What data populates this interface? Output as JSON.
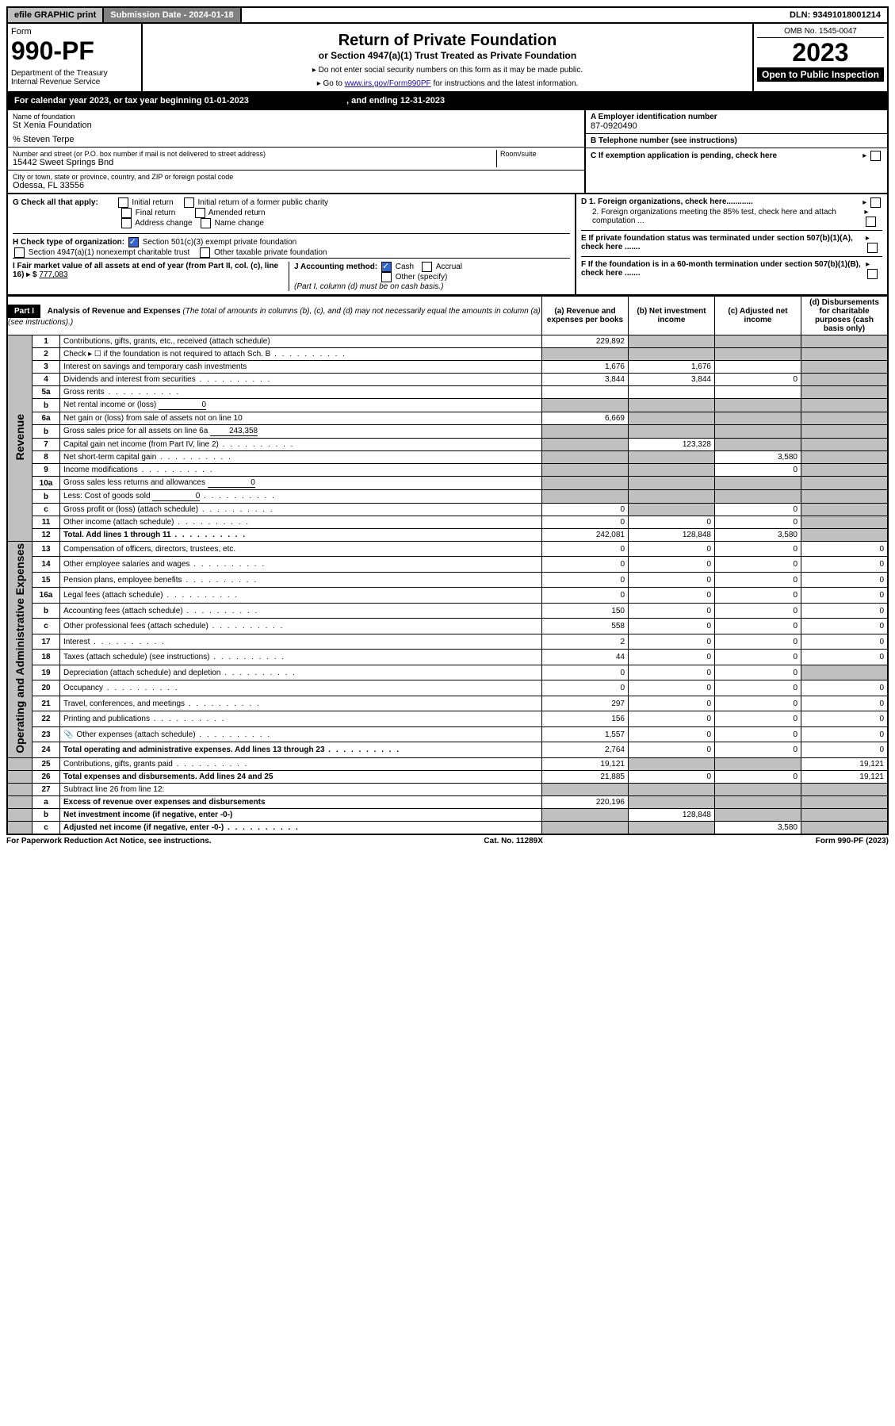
{
  "top": {
    "efile": "efile GRAPHIC print",
    "subdate": "Submission Date - 2024-01-18",
    "dln": "DLN: 93491018001214"
  },
  "header": {
    "form_word": "Form",
    "form_num": "990-PF",
    "dept": "Department of the Treasury\nInternal Revenue Service",
    "title": "Return of Private Foundation",
    "subtitle": "or Section 4947(a)(1) Trust Treated as Private Foundation",
    "instr1": "▸ Do not enter social security numbers on this form as it may be made public.",
    "instr2_pre": "▸ Go to ",
    "instr2_link": "www.irs.gov/Form990PF",
    "instr2_post": " for instructions and the latest information.",
    "omb": "OMB No. 1545-0047",
    "year": "2023",
    "open": "Open to Public Inspection"
  },
  "cal_year": {
    "text_pre": "For calendar year 2023, or tax year beginning ",
    "begin": "01-01-2023",
    "mid": " , and ending ",
    "end": "12-31-2023"
  },
  "entity": {
    "name_label": "Name of foundation",
    "name": "St Xenia Foundation",
    "care_of": "% Steven Terpe",
    "addr_label": "Number and street (or P.O. box number if mail is not delivered to street address)",
    "addr": "15442 Sweet Springs Bnd",
    "room_label": "Room/suite",
    "room": "",
    "city_label": "City or town, state or province, country, and ZIP or foreign postal code",
    "city": "Odessa, FL  33556",
    "ein_label": "A Employer identification number",
    "ein": "87-0920490",
    "tel_label": "B Telephone number (see instructions)",
    "tel": "",
    "c_label": "C If exemption application is pending, check here"
  },
  "ghi": {
    "g_label": "G Check all that apply:",
    "g_opts": [
      "Initial return",
      "Initial return of a former public charity",
      "Final return",
      "Amended return",
      "Address change",
      "Name change"
    ],
    "h_label": "H Check type of organization:",
    "h_opt1": "Section 501(c)(3) exempt private foundation",
    "h_opt2": "Section 4947(a)(1) nonexempt charitable trust",
    "h_opt3": "Other taxable private foundation",
    "i_label_pre": "I Fair market value of all assets at end of year (from Part II, col. (c), line 16) ▸ $ ",
    "i_val": "777,083",
    "j_label": "J Accounting method:",
    "j_cash": "Cash",
    "j_accrual": "Accrual",
    "j_other": "Other (specify)",
    "j_note": "(Part I, column (d) must be on cash basis.)",
    "d1": "D 1. Foreign organizations, check here............",
    "d2": "2. Foreign organizations meeting the 85% test, check here and attach computation ...",
    "e_label": "E  If private foundation status was terminated under section 507(b)(1)(A), check here .......",
    "f_label": "F  If the foundation is in a 60-month termination under section 507(b)(1)(B), check here ......."
  },
  "part1": {
    "badge": "Part I",
    "title": "Analysis of Revenue and Expenses",
    "title_note": "(The total of amounts in columns (b), (c), and (d) may not necessarily equal the amounts in column (a) (see instructions).)",
    "cols": {
      "a": "(a)   Revenue and expenses per books",
      "b": "(b)   Net investment income",
      "c": "(c)   Adjusted net income",
      "d": "(d)   Disbursements for charitable purposes (cash basis only)"
    }
  },
  "rot_labels": {
    "revenue": "Revenue",
    "expenses": "Operating and Administrative Expenses"
  },
  "rows": [
    {
      "n": "1",
      "desc": "Contributions, gifts, grants, etc., received (attach schedule)",
      "a": "229,892",
      "b": "shade",
      "c": "shade",
      "d": "shade"
    },
    {
      "n": "2",
      "desc": "Check ▸ ☐ if the foundation is not required to attach Sch. B",
      "a": "shade",
      "b": "shade",
      "c": "shade",
      "d": "shade",
      "dots": true
    },
    {
      "n": "3",
      "desc": "Interest on savings and temporary cash investments",
      "a": "1,676",
      "b": "1,676",
      "c": "",
      "d": "shade"
    },
    {
      "n": "4",
      "desc": "Dividends and interest from securities",
      "a": "3,844",
      "b": "3,844",
      "c": "0",
      "d": "shade",
      "dots": true
    },
    {
      "n": "5a",
      "desc": "Gross rents",
      "a": "",
      "b": "",
      "c": "",
      "d": "shade",
      "dots": true
    },
    {
      "n": "b",
      "desc": "Net rental income or (loss)",
      "inline": "0",
      "a": "shade",
      "b": "shade",
      "c": "shade",
      "d": "shade"
    },
    {
      "n": "6a",
      "desc": "Net gain or (loss) from sale of assets not on line 10",
      "a": "6,669",
      "b": "shade",
      "c": "shade",
      "d": "shade"
    },
    {
      "n": "b",
      "desc": "Gross sales price for all assets on line 6a",
      "inline": "243,358",
      "a": "shade",
      "b": "shade",
      "c": "shade",
      "d": "shade"
    },
    {
      "n": "7",
      "desc": "Capital gain net income (from Part IV, line 2)",
      "a": "shade",
      "b": "123,328",
      "c": "shade",
      "d": "shade",
      "dots": true
    },
    {
      "n": "8",
      "desc": "Net short-term capital gain",
      "a": "shade",
      "b": "shade",
      "c": "3,580",
      "d": "shade",
      "dots": true
    },
    {
      "n": "9",
      "desc": "Income modifications",
      "a": "shade",
      "b": "shade",
      "c": "0",
      "d": "shade",
      "dots": true
    },
    {
      "n": "10a",
      "desc": "Gross sales less returns and allowances",
      "inline": "0",
      "a": "shade",
      "b": "shade",
      "c": "shade",
      "d": "shade"
    },
    {
      "n": "b",
      "desc": "Less: Cost of goods sold",
      "inline": "0",
      "a": "shade",
      "b": "shade",
      "c": "shade",
      "d": "shade",
      "dots": true
    },
    {
      "n": "c",
      "desc": "Gross profit or (loss) (attach schedule)",
      "a": "0",
      "b": "shade",
      "c": "0",
      "d": "shade",
      "dots": true
    },
    {
      "n": "11",
      "desc": "Other income (attach schedule)",
      "a": "0",
      "b": "0",
      "c": "0",
      "d": "shade",
      "dots": true
    },
    {
      "n": "12",
      "desc": "Total. Add lines 1 through 11",
      "a": "242,081",
      "b": "128,848",
      "c": "3,580",
      "d": "shade",
      "bold": true,
      "dots": true
    },
    {
      "n": "13",
      "desc": "Compensation of officers, directors, trustees, etc.",
      "a": "0",
      "b": "0",
      "c": "0",
      "d": "0"
    },
    {
      "n": "14",
      "desc": "Other employee salaries and wages",
      "a": "0",
      "b": "0",
      "c": "0",
      "d": "0",
      "dots": true
    },
    {
      "n": "15",
      "desc": "Pension plans, employee benefits",
      "a": "0",
      "b": "0",
      "c": "0",
      "d": "0",
      "dots": true
    },
    {
      "n": "16a",
      "desc": "Legal fees (attach schedule)",
      "a": "0",
      "b": "0",
      "c": "0",
      "d": "0",
      "dots": true
    },
    {
      "n": "b",
      "desc": "Accounting fees (attach schedule)",
      "a": "150",
      "b": "0",
      "c": "0",
      "d": "0",
      "dots": true
    },
    {
      "n": "c",
      "desc": "Other professional fees (attach schedule)",
      "a": "558",
      "b": "0",
      "c": "0",
      "d": "0",
      "dots": true
    },
    {
      "n": "17",
      "desc": "Interest",
      "a": "2",
      "b": "0",
      "c": "0",
      "d": "0",
      "dots": true
    },
    {
      "n": "18",
      "desc": "Taxes (attach schedule) (see instructions)",
      "a": "44",
      "b": "0",
      "c": "0",
      "d": "0",
      "dots": true
    },
    {
      "n": "19",
      "desc": "Depreciation (attach schedule) and depletion",
      "a": "0",
      "b": "0",
      "c": "0",
      "d": "shade",
      "dots": true
    },
    {
      "n": "20",
      "desc": "Occupancy",
      "a": "0",
      "b": "0",
      "c": "0",
      "d": "0",
      "dots": true
    },
    {
      "n": "21",
      "desc": "Travel, conferences, and meetings",
      "a": "297",
      "b": "0",
      "c": "0",
      "d": "0",
      "dots": true
    },
    {
      "n": "22",
      "desc": "Printing and publications",
      "a": "156",
      "b": "0",
      "c": "0",
      "d": "0",
      "dots": true
    },
    {
      "n": "23",
      "desc": "Other expenses (attach schedule)",
      "a": "1,557",
      "b": "0",
      "c": "0",
      "d": "0",
      "icon": true,
      "dots": true
    },
    {
      "n": "24",
      "desc": "Total operating and administrative expenses. Add lines 13 through 23",
      "a": "2,764",
      "b": "0",
      "c": "0",
      "d": "0",
      "bold": true,
      "dots": true
    },
    {
      "n": "25",
      "desc": "Contributions, gifts, grants paid",
      "a": "19,121",
      "b": "shade",
      "c": "shade",
      "d": "19,121",
      "dots": true
    },
    {
      "n": "26",
      "desc": "Total expenses and disbursements. Add lines 24 and 25",
      "a": "21,885",
      "b": "0",
      "c": "0",
      "d": "19,121",
      "bold": true
    },
    {
      "n": "27",
      "desc": "Subtract line 26 from line 12:",
      "a": "shade",
      "b": "shade",
      "c": "shade",
      "d": "shade"
    },
    {
      "n": "a",
      "desc": "Excess of revenue over expenses and disbursements",
      "a": "220,196",
      "b": "shade",
      "c": "shade",
      "d": "shade",
      "bold": true
    },
    {
      "n": "b",
      "desc": "Net investment income (if negative, enter -0-)",
      "a": "shade",
      "b": "128,848",
      "c": "shade",
      "d": "shade",
      "bold": true
    },
    {
      "n": "c",
      "desc": "Adjusted net income (if negative, enter -0-)",
      "a": "shade",
      "b": "shade",
      "c": "3,580",
      "d": "shade",
      "bold": true,
      "dots": true
    }
  ],
  "footer": {
    "left": "For Paperwork Reduction Act Notice, see instructions.",
    "mid": "Cat. No. 11289X",
    "right": "Form 990-PF (2023)"
  }
}
